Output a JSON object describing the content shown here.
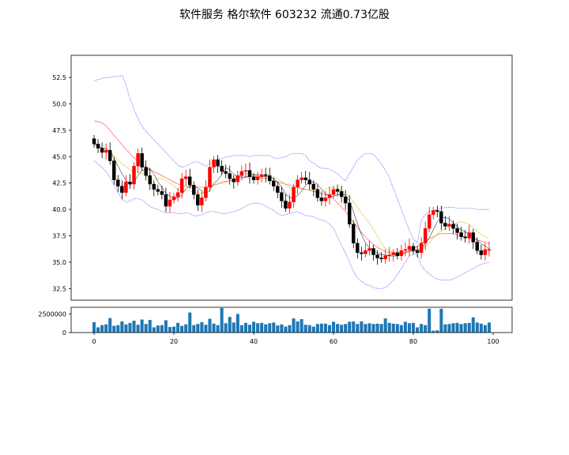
{
  "title": "软件服务 格尔软件 603232 流通0.73亿股",
  "chart_data": [
    {
      "type": "candlestick",
      "title": "软件服务 格尔软件 603232 流通0.73亿股",
      "xlim": [
        -5.75,
        104.75
      ],
      "ylim": [
        31.4,
        54.6
      ],
      "y_ticks": [
        32.5,
        35.0,
        37.5,
        40.0,
        42.5,
        45.0,
        47.5,
        50.0,
        52.5
      ],
      "y_tick_labels": [
        "32.5",
        "35.0",
        "37.5",
        "40.0",
        "42.5",
        "45.0",
        "47.5",
        "50.0",
        "52.5"
      ],
      "up_color": "#ff0000",
      "down_color": "#000000",
      "ma_colors": {
        "ma5": "#000000",
        "ma10": "#cccc33",
        "ma20": "#ff4444"
      },
      "band_color": "#4444ff",
      "close": [
        46.2,
        45.8,
        45.4,
        45.6,
        44.6,
        42.8,
        42.2,
        41.6,
        42.6,
        42.4,
        44.1,
        45.3,
        44.0,
        43.2,
        42.4,
        41.9,
        41.7,
        41.4,
        40.3,
        40.9,
        41.2,
        41.6,
        42.9,
        43.1,
        42.3,
        41.4,
        40.4,
        41.1,
        42.1,
        44.0,
        44.7,
        44.1,
        43.6,
        43.4,
        42.9,
        42.6,
        43.2,
        43.6,
        43.7,
        43.1,
        42.8,
        43.1,
        43.3,
        43.2,
        42.7,
        42.2,
        41.6,
        40.8,
        40.1,
        40.7,
        42.1,
        42.8,
        43.0,
        42.8,
        42.4,
        41.9,
        41.1,
        40.8,
        41.1,
        41.4,
        41.9,
        41.7,
        41.2,
        40.6,
        38.6,
        36.8,
        35.9,
        35.8,
        36.1,
        36.3,
        35.7,
        35.4,
        35.3,
        35.6,
        35.7,
        35.9,
        35.6,
        36.1,
        36.2,
        36.5,
        36.1,
        35.9,
        36.8,
        38.2,
        39.5,
        39.9,
        39.8,
        38.7,
        38.4,
        38.6,
        38.2,
        37.8,
        37.4,
        37.3,
        37.8,
        36.9,
        36.1,
        35.7,
        36.2,
        36.2
      ],
      "ma5": [
        46.2,
        46.0,
        45.8,
        45.75,
        45.52,
        44.84,
        44.12,
        43.36,
        42.76,
        42.32,
        42.58,
        43.2,
        43.68,
        43.8,
        43.8,
        43.36,
        42.64,
        42.12,
        41.54,
        41.24,
        41.1,
        41.08,
        41.38,
        41.94,
        42.22,
        42.26,
        42.02,
        41.76,
        41.46,
        41.8,
        42.46,
        42.8,
        43.3,
        43.96,
        43.74,
        43.32,
        43.14,
        43.06,
        43.08,
        43.2,
        43.28,
        43.26,
        43.2,
        43.1,
        43.02,
        42.9,
        42.6,
        42.1,
        41.48,
        41.08,
        41.06,
        41.3,
        41.74,
        42.28,
        42.62,
        42.58,
        42.4,
        41.9,
        41.46,
        41.26,
        41.26,
        41.38,
        41.46,
        41.36,
        40.8,
        39.8,
        38.62,
        37.6,
        36.84,
        36.34,
        36.12,
        35.86,
        35.72,
        35.66,
        35.6,
        35.58,
        35.6,
        35.8,
        35.9,
        36.06,
        36.08,
        36.16,
        36.3,
        36.74,
        37.3,
        38.06,
        38.84,
        39.22,
        39.26,
        39.08,
        38.74,
        38.34,
        38.08,
        37.86,
        37.7,
        37.44,
        37.1,
        36.74,
        36.54,
        36.22
      ],
      "ma10": [
        46.2,
        46.0,
        45.8,
        45.75,
        45.52,
        45.07,
        44.66,
        44.3,
        44.07,
        43.78,
        43.61,
        43.55,
        43.4,
        43.18,
        42.96,
        42.84,
        42.91,
        42.93,
        42.74,
        42.52,
        42.23,
        41.86,
        41.75,
        41.75,
        41.73,
        41.68,
        41.55,
        41.52,
        41.7,
        41.98,
        42.33,
        42.58,
        42.65,
        42.68,
        42.74,
        42.86,
        43.17,
        43.37,
        43.39,
        43.46,
        43.27,
        43.12,
        43.12,
        43.12,
        43.11,
        43.04,
        42.88,
        42.66,
        42.32,
        42.05,
        41.98,
        41.95,
        41.92,
        41.88,
        41.85,
        41.74,
        41.69,
        41.69,
        41.87,
        42.1,
        42.08,
        41.97,
        41.79,
        41.57,
        41.2,
        40.69,
        40.17,
        39.67,
        39.18,
        38.71,
        38.09,
        37.46,
        36.82,
        36.3,
        36.03,
        35.94,
        35.91,
        35.94,
        35.95,
        35.97,
        36.01,
        36.06,
        36.21,
        36.47,
        36.85,
        37.25,
        37.67,
        37.96,
        38.18,
        38.39,
        38.6,
        38.78,
        38.84,
        38.75,
        38.58,
        38.28,
        37.91,
        37.61,
        37.39,
        37.35
      ],
      "ma20": [
        48.4,
        48.3,
        48.2,
        47.9,
        47.5,
        47.0,
        46.6,
        46.1,
        45.7,
        45.3,
        44.9,
        44.6,
        44.3,
        44.0,
        43.8,
        43.6,
        43.4,
        43.2,
        43.0,
        42.8,
        42.6,
        42.4,
        42.3,
        42.2,
        42.1,
        42.1,
        42.1,
        42.1,
        42.1,
        42.2,
        42.3,
        42.4,
        42.5,
        42.6,
        42.7,
        42.8,
        42.9,
        43.0,
        43.0,
        43.1,
        43.1,
        43.1,
        43.0,
        42.9,
        42.8,
        42.7,
        42.6,
        42.5,
        42.4,
        42.3,
        42.2,
        42.1,
        42.0,
        41.9,
        41.8,
        41.7,
        41.6,
        41.5,
        41.4,
        41.3,
        41.0,
        40.6,
        40.2,
        39.8,
        39.3,
        38.8,
        38.3,
        37.8,
        37.4,
        37.0,
        36.7,
        36.4,
        36.2,
        36.0,
        35.9,
        35.8,
        35.8,
        35.8,
        35.9,
        36.1,
        36.3,
        36.5,
        36.8,
        37.0,
        37.2,
        37.4,
        37.6,
        37.7,
        37.7,
        37.7,
        37.7,
        37.6,
        37.5,
        37.4,
        37.3,
        37.2,
        37.1,
        37.0,
        36.9,
        36.8
      ],
      "upper": [
        52.2,
        52.3,
        52.4,
        52.5,
        52.5,
        52.6,
        52.6,
        52.7,
        51.8,
        50.5,
        49.5,
        48.6,
        47.9,
        47.4,
        47.0,
        46.6,
        46.2,
        45.8,
        45.4,
        45.0,
        44.6,
        44.2,
        44.0,
        44.1,
        44.3,
        44.5,
        44.5,
        44.3,
        44.1,
        44.3,
        44.6,
        44.8,
        44.8,
        45.0,
        45.0,
        45.1,
        45.1,
        45.1,
        45.1,
        45.0,
        45.1,
        45.1,
        45.1,
        45.1,
        45.1,
        44.9,
        44.8,
        44.9,
        45.0,
        45.2,
        45.3,
        45.3,
        45.3,
        45.1,
        44.6,
        44.4,
        44.1,
        43.9,
        43.9,
        43.8,
        43.6,
        43.4,
        43.0,
        42.7,
        43.4,
        44.0,
        44.7,
        45.0,
        45.3,
        45.3,
        45.2,
        44.8,
        44.3,
        43.7,
        43.0,
        42.0,
        41.0,
        40.0,
        39.0,
        38.0,
        37.2,
        36.8,
        39.0,
        39.5,
        39.8,
        39.9,
        40.0,
        40.1,
        40.2,
        40.2,
        40.2,
        40.1,
        40.1,
        40.1,
        40.1,
        40.1,
        40.0,
        40.0,
        40.0,
        40.0
      ],
      "lower": [
        44.6,
        44.3,
        44.0,
        43.6,
        43.0,
        42.3,
        41.6,
        41.0,
        40.7,
        40.8,
        41.0,
        41.0,
        40.9,
        40.6,
        40.3,
        40.1,
        40.0,
        39.8,
        39.7,
        39.7,
        39.7,
        39.6,
        39.6,
        39.7,
        39.6,
        39.4,
        39.4,
        39.5,
        39.7,
        39.8,
        39.8,
        39.7,
        39.6,
        39.6,
        39.7,
        39.8,
        39.9,
        40.1,
        40.3,
        40.5,
        40.6,
        40.6,
        40.5,
        40.3,
        40.1,
        39.9,
        39.6,
        39.4,
        39.5,
        39.6,
        39.7,
        39.8,
        39.6,
        39.4,
        39.4,
        39.3,
        39.1,
        39.0,
        38.9,
        38.6,
        38.2,
        37.4,
        36.6,
        35.9,
        35.0,
        34.1,
        33.5,
        33.2,
        32.9,
        32.8,
        32.6,
        32.5,
        32.5,
        32.6,
        32.9,
        33.3,
        33.8,
        34.4,
        35.0,
        35.6,
        35.7,
        35.8,
        34.7,
        34.2,
        33.9,
        33.6,
        33.4,
        33.3,
        33.3,
        33.3,
        33.4,
        33.6,
        33.8,
        34.0,
        34.2,
        34.4,
        34.6,
        34.8,
        34.9,
        35.0
      ]
    },
    {
      "type": "bar",
      "title": "",
      "xlim": [
        -5.75,
        104.75
      ],
      "ylim": [
        0,
        3400000
      ],
      "y_ticks": [
        0,
        2500000
      ],
      "y_tick_labels": [
        "0",
        "2500000"
      ],
      "x_ticks": [
        0,
        20,
        40,
        60,
        80,
        100
      ],
      "x_tick_labels": [
        "0",
        "20",
        "40",
        "60",
        "80",
        "100"
      ],
      "color": "#1f77b4",
      "values": [
        1400000,
        700000,
        1000000,
        1100000,
        1950000,
        900000,
        1000000,
        1500000,
        1100000,
        1300000,
        1600000,
        1050000,
        1750000,
        1150000,
        1700000,
        700000,
        950000,
        1000000,
        1650000,
        750000,
        800000,
        1300000,
        900000,
        1100000,
        2700000,
        1000000,
        1150000,
        1400000,
        1050000,
        1850000,
        1200000,
        1000000,
        3300000,
        1250000,
        2100000,
        1350000,
        2500000,
        1000000,
        1300000,
        1050000,
        1450000,
        1250000,
        1300000,
        1100000,
        1250000,
        1350000,
        950000,
        1100000,
        800000,
        1000000,
        1900000,
        1500000,
        1800000,
        1050000,
        1000000,
        800000,
        1150000,
        1200000,
        1200000,
        1000000,
        1450000,
        1150000,
        1050000,
        1150000,
        1450000,
        1500000,
        1150000,
        1500000,
        1150000,
        1250000,
        1150000,
        1200000,
        1150000,
        1900000,
        1300000,
        1200000,
        1150000,
        1000000,
        1450000,
        1250000,
        1300000,
        700000,
        1150000,
        1000000,
        3200000,
        250000,
        300000,
        3200000,
        1100000,
        1150000,
        1250000,
        1300000,
        1150000,
        1250000,
        1300000,
        2050000,
        1350000,
        1200000,
        1000000,
        1350000
      ]
    }
  ]
}
